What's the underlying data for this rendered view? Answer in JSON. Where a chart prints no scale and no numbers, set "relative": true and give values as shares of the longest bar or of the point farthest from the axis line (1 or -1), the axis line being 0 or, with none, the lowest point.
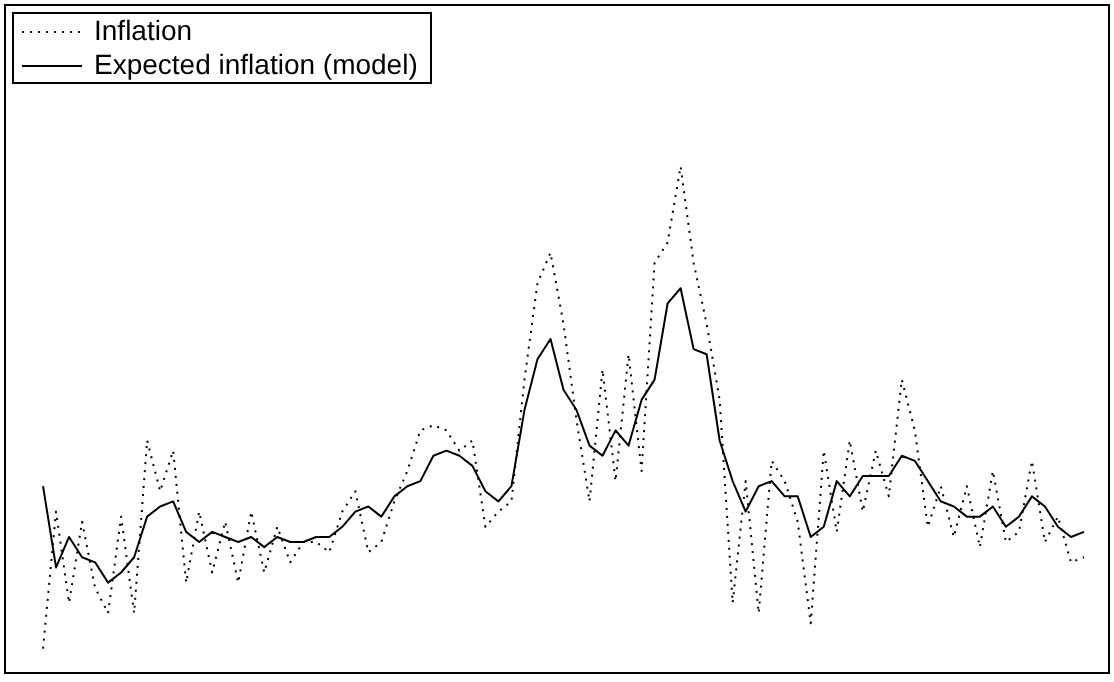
{
  "chart_data": {
    "type": "line",
    "relative": true,
    "categories": [
      null,
      null,
      null,
      null,
      null,
      null,
      null,
      null,
      null,
      null,
      null,
      null,
      null,
      null,
      null,
      null,
      null,
      null,
      null,
      null,
      null,
      null,
      null,
      null,
      null,
      null,
      null,
      null,
      null,
      null,
      null,
      null,
      null,
      null,
      null,
      null,
      null,
      null,
      null,
      null,
      null,
      null,
      null,
      null,
      null,
      null,
      null,
      null,
      null,
      null,
      null,
      null,
      null,
      null,
      null,
      null,
      null,
      null,
      null,
      null,
      null,
      null,
      null,
      null,
      null,
      null,
      null,
      null,
      null,
      null,
      null,
      null,
      null,
      null,
      null,
      null,
      null,
      null,
      null,
      null,
      null
    ],
    "series": [
      {
        "name": "Inflation",
        "color": "#000000",
        "line_style": "dotted",
        "values": [
          0.05,
          0.32,
          0.14,
          0.3,
          0.17,
          0.12,
          0.31,
          0.12,
          0.46,
          0.36,
          0.44,
          0.18,
          0.32,
          0.2,
          0.3,
          0.18,
          0.32,
          0.2,
          0.29,
          0.22,
          0.26,
          0.26,
          0.24,
          0.32,
          0.36,
          0.24,
          0.26,
          0.34,
          0.4,
          0.48,
          0.49,
          0.48,
          0.44,
          0.46,
          0.29,
          0.32,
          0.34,
          0.58,
          0.77,
          0.83,
          0.69,
          0.5,
          0.34,
          0.6,
          0.38,
          0.63,
          0.4,
          0.81,
          0.85,
          1,
          0.81,
          0.69,
          0.54,
          0.14,
          0.38,
          0.12,
          0.42,
          0.38,
          0.3,
          0.1,
          0.44,
          0.28,
          0.46,
          0.32,
          0.44,
          0.35,
          0.58,
          0.48,
          0.29,
          0.37,
          0.27,
          0.37,
          0.25,
          0.4,
          0.26,
          0.28,
          0.42,
          0.26,
          0.31,
          0.22,
          0.23
        ]
      },
      {
        "name": "Expected inflation (model)",
        "color": "#000000",
        "line_style": "solid",
        "values": [
          0.37,
          0.21,
          0.27,
          0.23,
          0.22,
          0.18,
          0.2,
          0.23,
          0.31,
          0.33,
          0.34,
          0.28,
          0.26,
          0.28,
          0.27,
          0.26,
          0.27,
          0.25,
          0.27,
          0.26,
          0.26,
          0.27,
          0.27,
          0.29,
          0.32,
          0.33,
          0.31,
          0.35,
          0.37,
          0.38,
          0.43,
          0.44,
          0.43,
          0.41,
          0.36,
          0.34,
          0.37,
          0.52,
          0.62,
          0.66,
          0.56,
          0.52,
          0.45,
          0.43,
          0.48,
          0.45,
          0.54,
          0.58,
          0.73,
          0.76,
          0.64,
          0.63,
          0.46,
          0.38,
          0.32,
          0.37,
          0.38,
          0.35,
          0.35,
          0.27,
          0.29,
          0.38,
          0.35,
          0.39,
          0.39,
          0.39,
          0.43,
          0.42,
          0.38,
          0.34,
          0.33,
          0.31,
          0.31,
          0.33,
          0.29,
          0.31,
          0.35,
          0.33,
          0.29,
          0.27,
          0.28
        ]
      }
    ],
    "legend": "top left",
    "marker": "none"
  }
}
